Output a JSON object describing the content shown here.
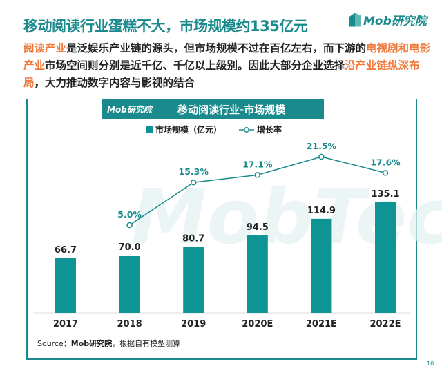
{
  "title": "移动阅读行业蛋糕不大，市场规模约135亿元",
  "logo_text": "Mob研究院",
  "body": [
    {
      "text": "阅读产业",
      "hl": true
    },
    {
      "text": "是泛娱乐产业链的源头，但市场规模不过在百亿左右，而下游的",
      "hl": false
    },
    {
      "text": "电视剧和电影产业",
      "hl": true
    },
    {
      "text": "市场空间则分别是近千亿、千亿以上级别。因此大部分企业选择",
      "hl": false
    },
    {
      "text": "沿产业链纵深布局",
      "hl": true
    },
    {
      "text": "，大力推动数字内容与影视的结合",
      "hl": false
    }
  ],
  "colors": {
    "accent": "#1a8a8c",
    "highlight": "#f07a3c",
    "bar": "#0e9494",
    "line": "#1a8a8c"
  },
  "watermark": "MobTech",
  "chart_data": {
    "type": "bar+line",
    "title": "移动阅读行业-市场规模",
    "categories": [
      "2017",
      "2018",
      "2019",
      "2020E",
      "2021E",
      "2022E"
    ],
    "series": [
      {
        "name": "市场规模（亿元）",
        "type": "bar",
        "values": [
          66.7,
          70.0,
          80.7,
          94.5,
          114.9,
          135.1
        ],
        "labels": [
          "66.7",
          "70.0",
          "80.7",
          "94.5",
          "114.9",
          "135.1"
        ]
      },
      {
        "name": "增长率",
        "type": "line",
        "values": [
          null,
          5.0,
          15.3,
          17.1,
          21.5,
          17.6
        ],
        "labels": [
          "",
          "5.0%",
          "15.3%",
          "17.1%",
          "21.5%",
          "17.6%"
        ]
      }
    ],
    "legend": "top",
    "grid": false
  },
  "source": {
    "prefix": "Source：",
    "bold": "Mob研究院",
    "rest": "，根据自有模型测算"
  },
  "page_number": "10"
}
